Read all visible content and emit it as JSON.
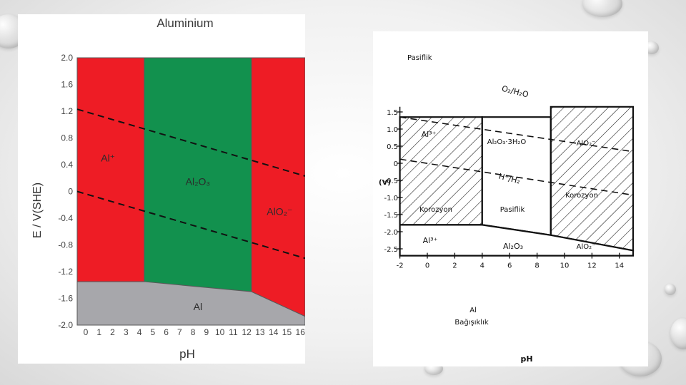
{
  "chart_data": [
    {
      "type": "area",
      "title": "Aluminium",
      "xlabel": "pH",
      "ylabel": "E / V(SHE)",
      "xlim": [
        0,
        17
      ],
      "ylim": [
        -2.0,
        2.0
      ],
      "xticks": [
        0,
        1,
        2,
        3,
        4,
        5,
        6,
        7,
        8,
        9,
        10,
        11,
        12,
        13,
        14,
        15,
        16
      ],
      "yticks": [
        2.0,
        1.6,
        1.2,
        0.8,
        0.4,
        0,
        -0.4,
        -0.8,
        -1.2,
        -1.6,
        -2.0
      ],
      "ytick_labels": [
        "2.0",
        "1.6",
        "1.2",
        "0.8",
        "0.4",
        "0",
        "-0.4",
        "-0.8",
        "-1.2",
        "-1.6",
        "-2.0"
      ],
      "grid": false,
      "regions": [
        {
          "name": "Al⁺",
          "color": "#ee1c25",
          "polygon": [
            [
              0,
              2.0
            ],
            [
              5,
              2.0
            ],
            [
              5,
              -1.35
            ],
            [
              0,
              -1.35
            ]
          ],
          "label_at": [
            2.3,
            0.5
          ]
        },
        {
          "name": "Al₂O₃",
          "color": "#12914e",
          "polygon": [
            [
              5,
              2.0
            ],
            [
              13,
              2.0
            ],
            [
              13,
              -1.5
            ],
            [
              5,
              -1.35
            ]
          ],
          "label_at": [
            9,
            0.15
          ]
        },
        {
          "name": "AlO₂⁻",
          "color": "#ee1c25",
          "polygon": [
            [
              13,
              2.0
            ],
            [
              17,
              2.0
            ],
            [
              17,
              -1.87
            ],
            [
              13,
              -1.5
            ]
          ],
          "label_at": [
            15.1,
            -0.3
          ]
        },
        {
          "name": "Al",
          "color": "#a7a7ab",
          "polygon": [
            [
              0,
              -1.35
            ],
            [
              5,
              -1.35
            ],
            [
              13,
              -1.5
            ],
            [
              17,
              -1.87
            ],
            [
              17,
              -2.0
            ],
            [
              0,
              -2.0
            ]
          ],
          "label_at": [
            9,
            -1.72
          ]
        }
      ],
      "series": [
        {
          "style": "dashed",
          "x": [
            0,
            17
          ],
          "y": [
            1.23,
            0.23
          ]
        },
        {
          "style": "dashed",
          "x": [
            0,
            17
          ],
          "y": [
            0.0,
            -1.0
          ]
        }
      ]
    },
    {
      "type": "area",
      "xlabel": "pH",
      "ylabel": "(V)",
      "xlim": [
        -2,
        15
      ],
      "ylim": [
        -2.5,
        1.5
      ],
      "xticks": [
        -2,
        0,
        2,
        4,
        6,
        8,
        10,
        12,
        14
      ],
      "yticks": [
        1.5,
        1.0,
        0.5,
        0,
        -0.5,
        -1.0,
        -1.5,
        -2.0,
        -2.5
      ],
      "ytick_labels": [
        "1.5",
        "1.0",
        "0.5",
        "0",
        "-0.5",
        "-1.0",
        "-1.5",
        "-2.0",
        "-2.5"
      ],
      "grid": false,
      "labels": {
        "top": "Pasiflik",
        "al3_upper": "Al³⁺",
        "hydrate": "Al₂O₃·3H₂O",
        "alo2_upper": "AlO₂⁻",
        "korozyon_left": "Korozyon",
        "pasiflik_mid": "Pasiflik",
        "korozyon_right": "Korozyon",
        "al3_lower": "Al³⁺",
        "oxide": "Al₂O₃",
        "alo2_lower": "AlO₂⁻",
        "al": "Al",
        "immunity": "Bağışıklık",
        "o2_line": "O₂/H₂O",
        "h_line": "H⁺/H₂"
      },
      "regions": [
        {
          "name": "Al³⁺ Korozyon",
          "pattern": "hatched",
          "polygon": [
            [
              -2,
              1.35
            ],
            [
              4,
              1.35
            ],
            [
              4,
              -1.8
            ],
            [
              -2,
              -1.8
            ]
          ]
        },
        {
          "name": "Al₂O₃ Pasiflik",
          "pattern": "blank",
          "polygon": [
            [
              4,
              1.35
            ],
            [
              9,
              1.35
            ],
            [
              9,
              -2.1
            ],
            [
              4,
              -1.8
            ]
          ]
        },
        {
          "name": "AlO₂⁻ Korozyon",
          "pattern": "hatched",
          "polygon": [
            [
              9,
              1.65
            ],
            [
              15,
              1.65
            ],
            [
              15,
              -2.55
            ],
            [
              9,
              -2.1
            ]
          ]
        },
        {
          "name": "Al Bağışıklık",
          "pattern": "blank",
          "polygon": [
            [
              -2,
              -1.8
            ],
            [
              4,
              -1.8
            ],
            [
              9,
              -2.1
            ],
            [
              15,
              -2.55
            ],
            [
              15,
              -2.7
            ],
            [
              -2,
              -2.7
            ]
          ]
        }
      ],
      "series": [
        {
          "style": "dashed",
          "x": [
            -2,
            15
          ],
          "y": [
            1.35,
            0.34
          ]
        },
        {
          "style": "dashed",
          "x": [
            -2,
            15
          ],
          "y": [
            0.12,
            -0.93
          ]
        }
      ]
    }
  ]
}
